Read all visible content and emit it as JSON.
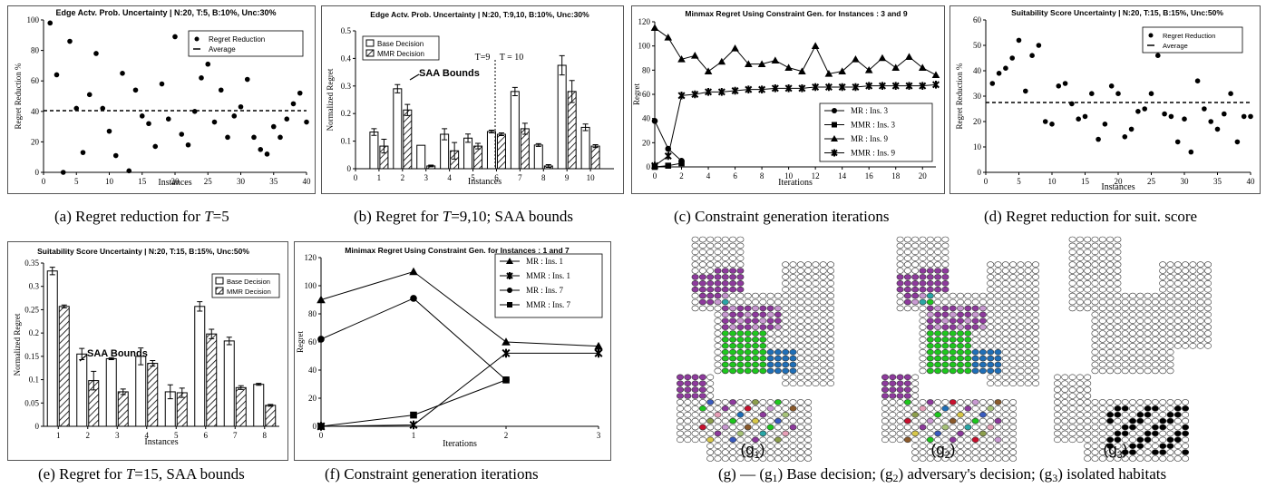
{
  "captions": {
    "a": {
      "pre": "(a) Regret reduction for ",
      "var": "T",
      "post": "=5"
    },
    "b": {
      "pre": "(b) Regret for ",
      "var": "T",
      "post": "=9,10; SAA bounds"
    },
    "c": {
      "pre": "(c) Constraint generation iterations",
      "var": "",
      "post": ""
    },
    "d": {
      "pre": "(d) Regret reduction for suit. score",
      "var": "",
      "post": ""
    },
    "e": {
      "pre": "(e) Regret for ",
      "var": "T",
      "post": "=15, SAA bounds"
    },
    "f": {
      "pre": "(f) Constraint generation iterations",
      "var": "",
      "post": ""
    },
    "g": {
      "pre": "(g) — (g",
      "s1": "1",
      "m1": ") Base decision; (g",
      "s2": "2",
      "m2": ") adversary's decision; (g",
      "s3": "3",
      "post": ") isolated habitats"
    }
  },
  "colors": {
    "purple": "#8e3a9d",
    "lavender": "#c99ad2",
    "teal": "#2aa6a6",
    "green": "#1ec71e",
    "blue": "#1f6fb8",
    "dblue": "#3a5bbf",
    "red": "#c8102e",
    "khaki": "#a8c47a",
    "olive": "#8d9f4d",
    "brown": "#8b5a2b",
    "pink": "#e7a0b8",
    "yellow": "#d8c84a",
    "black": "#000000"
  },
  "chart_data": [
    {
      "id": "a",
      "type": "scatter",
      "title": "Edge Actv. Prob. Uncertainty | N:20, T:5, B:10%, Unc:30%",
      "xlabel": "Instances",
      "ylabel": "Regret Reduction %",
      "xlim": [
        0,
        40
      ],
      "ylim": [
        0,
        100
      ],
      "xticks": [
        0,
        5,
        10,
        15,
        20,
        25,
        30,
        35,
        40
      ],
      "yticks": [
        0,
        20,
        40,
        60,
        80,
        100
      ],
      "legend": {
        "position": "top-right",
        "entries": [
          "Regret Reduction",
          "Average"
        ]
      },
      "average": 40.5,
      "x": [
        1,
        2,
        3,
        4,
        5,
        6,
        7,
        8,
        9,
        10,
        11,
        12,
        13,
        14,
        15,
        16,
        17,
        18,
        19,
        20,
        21,
        22,
        23,
        24,
        25,
        26,
        27,
        28,
        29,
        30,
        31,
        32,
        33,
        34,
        35,
        36,
        37,
        38,
        39,
        40
      ],
      "y": [
        98,
        64,
        0,
        86,
        42,
        13,
        51,
        78,
        42,
        27,
        11,
        65,
        1,
        54,
        37,
        32,
        17,
        58,
        35,
        89,
        25,
        18,
        40,
        62,
        71,
        33,
        54,
        23,
        37,
        43,
        61,
        23,
        15,
        12,
        30,
        23,
        35,
        45,
        52,
        33
      ]
    },
    {
      "id": "b",
      "type": "bar",
      "title": "Edge Actv. Prob. Uncertainty | N:20, T:9,10, B:10%, Unc:30%",
      "xlabel": "Instances",
      "ylabel": "Normalized Regret",
      "ylim": [
        0,
        0.5
      ],
      "yticks": [
        0,
        0.1,
        0.2,
        0.3,
        0.4,
        0.5
      ],
      "xticks": [
        0,
        1,
        2,
        3,
        4,
        5,
        6,
        7,
        8,
        9,
        10
      ],
      "categories": [
        "1",
        "2",
        "3",
        "4",
        "5",
        "6",
        "7",
        "8",
        "9",
        "10"
      ],
      "series": [
        {
          "name": "Base Decision",
          "values": [
            0.133,
            0.29,
            0.085,
            0.125,
            0.111,
            0.135,
            0.28,
            0.086,
            0.375,
            0.15
          ],
          "err": [
            0.012,
            0.015,
            0,
            0.02,
            0.015,
            0.005,
            0.015,
            0.005,
            0.035,
            0.012
          ]
        },
        {
          "name": "MMR Decision",
          "values": [
            0.082,
            0.213,
            0.01,
            0.065,
            0.082,
            0.125,
            0.145,
            0.01,
            0.28,
            0.082
          ],
          "err": [
            0.025,
            0.02,
            0.003,
            0.03,
            0.01,
            0.005,
            0.02,
            0.005,
            0.04,
            0.005
          ]
        }
      ],
      "annotations": [
        "SAA Bounds",
        "T=9",
        "T = 10"
      ],
      "legend": {
        "position": "top-left"
      }
    },
    {
      "id": "c",
      "type": "line",
      "title": "Minmax Regret Using Constraint Gen. for Instances : 3 and 9",
      "xlabel": "Iterations",
      "ylabel": "Regret",
      "xlim": [
        0,
        21
      ],
      "ylim": [
        0,
        120
      ],
      "xticks": [
        0,
        2,
        4,
        6,
        8,
        10,
        12,
        14,
        16,
        18,
        20
      ],
      "yticks": [
        0,
        20,
        40,
        60,
        80,
        100,
        120
      ],
      "series": [
        {
          "name": "MR : Ins. 3",
          "marker": "circle",
          "x": [
            0,
            1,
            2
          ],
          "y": [
            38,
            15,
            5
          ]
        },
        {
          "name": "MMR : Ins. 3",
          "marker": "square",
          "x": [
            0,
            1,
            2
          ],
          "y": [
            0,
            1,
            3
          ]
        },
        {
          "name": "MR : Ins. 9",
          "marker": "triangle",
          "x": [
            0,
            1,
            2,
            3,
            4,
            5,
            6,
            7,
            8,
            9,
            10,
            11,
            12,
            13,
            14,
            15,
            16,
            17,
            18,
            19,
            20,
            21
          ],
          "y": [
            115,
            107,
            89,
            92,
            79,
            87,
            98,
            85,
            85,
            88,
            82,
            79,
            100,
            77,
            79,
            89,
            80,
            90,
            82,
            91,
            82,
            76
          ]
        },
        {
          "name": "MMR : Ins. 9",
          "marker": "star",
          "x": [
            0,
            1,
            2,
            3,
            4,
            5,
            6,
            7,
            8,
            9,
            10,
            11,
            12,
            13,
            14,
            15,
            16,
            17,
            18,
            19,
            20,
            21
          ],
          "y": [
            1,
            9,
            59,
            60,
            62,
            62,
            63,
            64,
            64,
            65,
            65,
            65,
            66,
            66,
            66,
            66,
            67,
            67,
            67,
            67,
            67,
            68
          ]
        }
      ],
      "legend": {
        "position": "bottom-right"
      }
    },
    {
      "id": "d",
      "type": "scatter",
      "title": "Suitability Score Uncertainty | N:20, T:15, B:15%, Unc:50%",
      "xlabel": "Instances",
      "ylabel": "Regret Reduction %",
      "xlim": [
        0,
        40
      ],
      "ylim": [
        0,
        60
      ],
      "xticks": [
        0,
        5,
        10,
        15,
        20,
        25,
        30,
        35,
        40
      ],
      "yticks": [
        0,
        10,
        20,
        30,
        40,
        50,
        60
      ],
      "legend": {
        "position": "top-right",
        "entries": [
          "Regret Reduction",
          "Average"
        ]
      },
      "average": 27.5,
      "x": [
        1,
        2,
        3,
        4,
        5,
        6,
        7,
        8,
        9,
        10,
        11,
        12,
        13,
        14,
        15,
        16,
        17,
        18,
        19,
        20,
        21,
        22,
        23,
        24,
        25,
        26,
        27,
        28,
        29,
        30,
        31,
        32,
        33,
        34,
        35,
        36,
        37,
        38,
        39,
        40
      ],
      "y": [
        35,
        39,
        41,
        45,
        52,
        32,
        46,
        50,
        20,
        19,
        34,
        35,
        27,
        21,
        22,
        31,
        13,
        19,
        34,
        31,
        14,
        17,
        24,
        25,
        31,
        46,
        23,
        22,
        12,
        21,
        8,
        36,
        25,
        20,
        17,
        23,
        31,
        12,
        22,
        22
      ]
    },
    {
      "id": "e",
      "type": "bar",
      "title": "Suitability Score Uncertainty | N:20, T:15, B:15%, Unc:50%",
      "xlabel": "Instances",
      "ylabel": "Normalized Regret",
      "ylim": [
        0,
        0.35
      ],
      "yticks": [
        0,
        0.05,
        0.1,
        0.15,
        0.2,
        0.25,
        0.3,
        0.35
      ],
      "categories": [
        "1",
        "2",
        "3",
        "4",
        "5",
        "6",
        "7",
        "8"
      ],
      "series": [
        {
          "name": "Base Decision",
          "values": [
            0.333,
            0.155,
            0.145,
            0.15,
            0.074,
            0.257,
            0.183,
            0.09
          ],
          "err": [
            0.008,
            0.012,
            0.002,
            0.018,
            0.015,
            0.01,
            0.008,
            0.002
          ]
        },
        {
          "name": "MMR Decision",
          "values": [
            0.257,
            0.098,
            0.074,
            0.135,
            0.072,
            0.198,
            0.083,
            0.045
          ],
          "err": [
            0.003,
            0.02,
            0.006,
            0.006,
            0.01,
            0.01,
            0.004,
            0.002
          ]
        }
      ],
      "annotations": [
        "SAA Bounds"
      ],
      "legend": {
        "position": "top-right"
      }
    },
    {
      "id": "f",
      "type": "line",
      "title": "Minimax Regret Using Constraint Gen. for Instances : 1 and 7",
      "xlabel": "Iterations",
      "ylabel": "Regret",
      "xlim": [
        0,
        3
      ],
      "ylim": [
        0,
        120
      ],
      "xticks": [
        0,
        1,
        2,
        3
      ],
      "yticks": [
        0,
        20,
        40,
        60,
        80,
        100,
        120
      ],
      "series": [
        {
          "name": "MR : Ins. 1",
          "marker": "triangle",
          "x": [
            0,
            1,
            2,
            3
          ],
          "y": [
            90,
            110,
            60,
            57
          ]
        },
        {
          "name": "MMR : Ins. 1",
          "marker": "star",
          "x": [
            0,
            1,
            2,
            3
          ],
          "y": [
            0,
            1,
            52,
            52
          ]
        },
        {
          "name": "MR : Ins. 7",
          "marker": "circle",
          "x": [
            0,
            1,
            2
          ],
          "y": [
            62,
            91,
            33
          ]
        },
        {
          "name": "MMR : Ins. 7",
          "marker": "square",
          "x": [
            0,
            1,
            2
          ],
          "y": [
            0,
            8,
            33
          ]
        }
      ],
      "legend": {
        "position": "top-right"
      }
    }
  ],
  "maps": {
    "labels": [
      "(g",
      "1",
      ")",
      "(g",
      "2",
      ")",
      "(g",
      "3",
      ")"
    ]
  }
}
